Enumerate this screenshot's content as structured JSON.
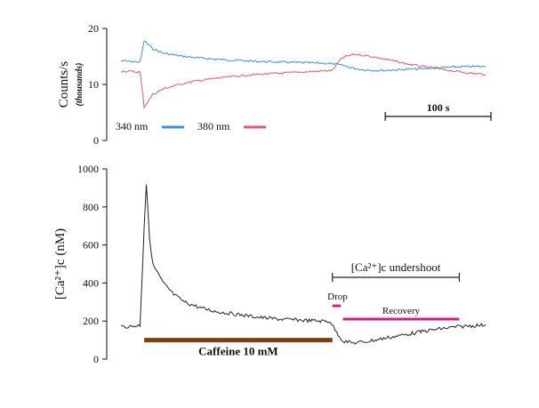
{
  "chart_data": [
    {
      "type": "line",
      "ylabel": "Counts/s",
      "ylabel_sub": "(thousands)",
      "ylim": [
        0,
        20
      ],
      "yticks": [
        0,
        10,
        20
      ],
      "ytick_labels": [
        "0",
        "10",
        "20"
      ],
      "x_unit": "s",
      "xlim": [
        0,
        350
      ],
      "grid": false,
      "legend_position": "bottom-left",
      "scale_bar": {
        "label": "100 s",
        "length": 100
      },
      "series": [
        {
          "name": "340 nm",
          "color": "#3a8fe0",
          "x": [
            0,
            10,
            18,
            22,
            30,
            40,
            55,
            70,
            90,
            110,
            130,
            150,
            170,
            190,
            200,
            210,
            220,
            230,
            240,
            250,
            260,
            270,
            285,
            300,
            315,
            330,
            345
          ],
          "y": [
            14.2,
            14.1,
            14.0,
            17.8,
            16.4,
            15.6,
            15.1,
            14.8,
            14.5,
            14.3,
            14.1,
            14.0,
            13.9,
            13.8,
            13.7,
            13.4,
            12.9,
            12.6,
            12.5,
            12.5,
            12.6,
            12.7,
            12.8,
            13.0,
            13.1,
            13.2,
            13.2
          ]
        },
        {
          "name": "380 nm",
          "color": "#e05a66",
          "x": [
            0,
            10,
            18,
            22,
            30,
            40,
            55,
            70,
            90,
            110,
            130,
            150,
            170,
            190,
            200,
            205,
            210,
            220,
            230,
            240,
            250,
            260,
            270,
            285,
            300,
            315,
            330,
            345
          ],
          "y": [
            12.4,
            12.3,
            12.2,
            6.0,
            8.2,
            9.2,
            10.0,
            10.6,
            11.1,
            11.5,
            11.8,
            12.0,
            12.2,
            12.4,
            12.5,
            13.8,
            14.8,
            15.4,
            15.2,
            14.9,
            14.5,
            14.1,
            13.7,
            13.2,
            12.8,
            12.4,
            12.0,
            11.8
          ]
        }
      ]
    },
    {
      "type": "line",
      "ylabel": "[Ca²⁺]c  (nM)",
      "ylim": [
        0,
        1000
      ],
      "yticks": [
        0,
        200,
        400,
        600,
        800,
        1000
      ],
      "ytick_labels": [
        "0",
        "200",
        "400",
        "600",
        "800",
        "1000"
      ],
      "x_unit": "s",
      "xlim": [
        0,
        350
      ],
      "grid": false,
      "series": [
        {
          "name": "",
          "color": "#222222",
          "x": [
            0,
            10,
            18,
            22,
            24,
            27,
            30,
            35,
            40,
            50,
            60,
            75,
            90,
            110,
            130,
            150,
            170,
            190,
            198,
            204,
            210,
            220,
            230,
            240,
            250,
            260,
            270,
            285,
            300,
            315,
            330,
            345
          ],
          "y": [
            170,
            172,
            178,
            700,
            920,
            640,
            500,
            450,
            400,
            340,
            300,
            270,
            250,
            235,
            220,
            210,
            205,
            200,
            198,
            140,
            95,
            85,
            90,
            100,
            110,
            120,
            130,
            145,
            158,
            168,
            175,
            180
          ]
        }
      ],
      "annotations": [
        {
          "label": "Caffeine 10 mM",
          "x_start": 22,
          "x_end": 200,
          "color": "#7a4010",
          "y": 100
        },
        {
          "label": "[Ca²⁺]c undershoot",
          "x_start": 200,
          "x_end": 320,
          "color": "#222222",
          "y": 430
        },
        {
          "label": "Drop",
          "x_start": 200,
          "x_end": 208,
          "color": "#d0207e",
          "y": 280
        },
        {
          "label": "Recovery",
          "x_start": 210,
          "x_end": 320,
          "color": "#d0207e",
          "y": 210
        }
      ]
    }
  ]
}
